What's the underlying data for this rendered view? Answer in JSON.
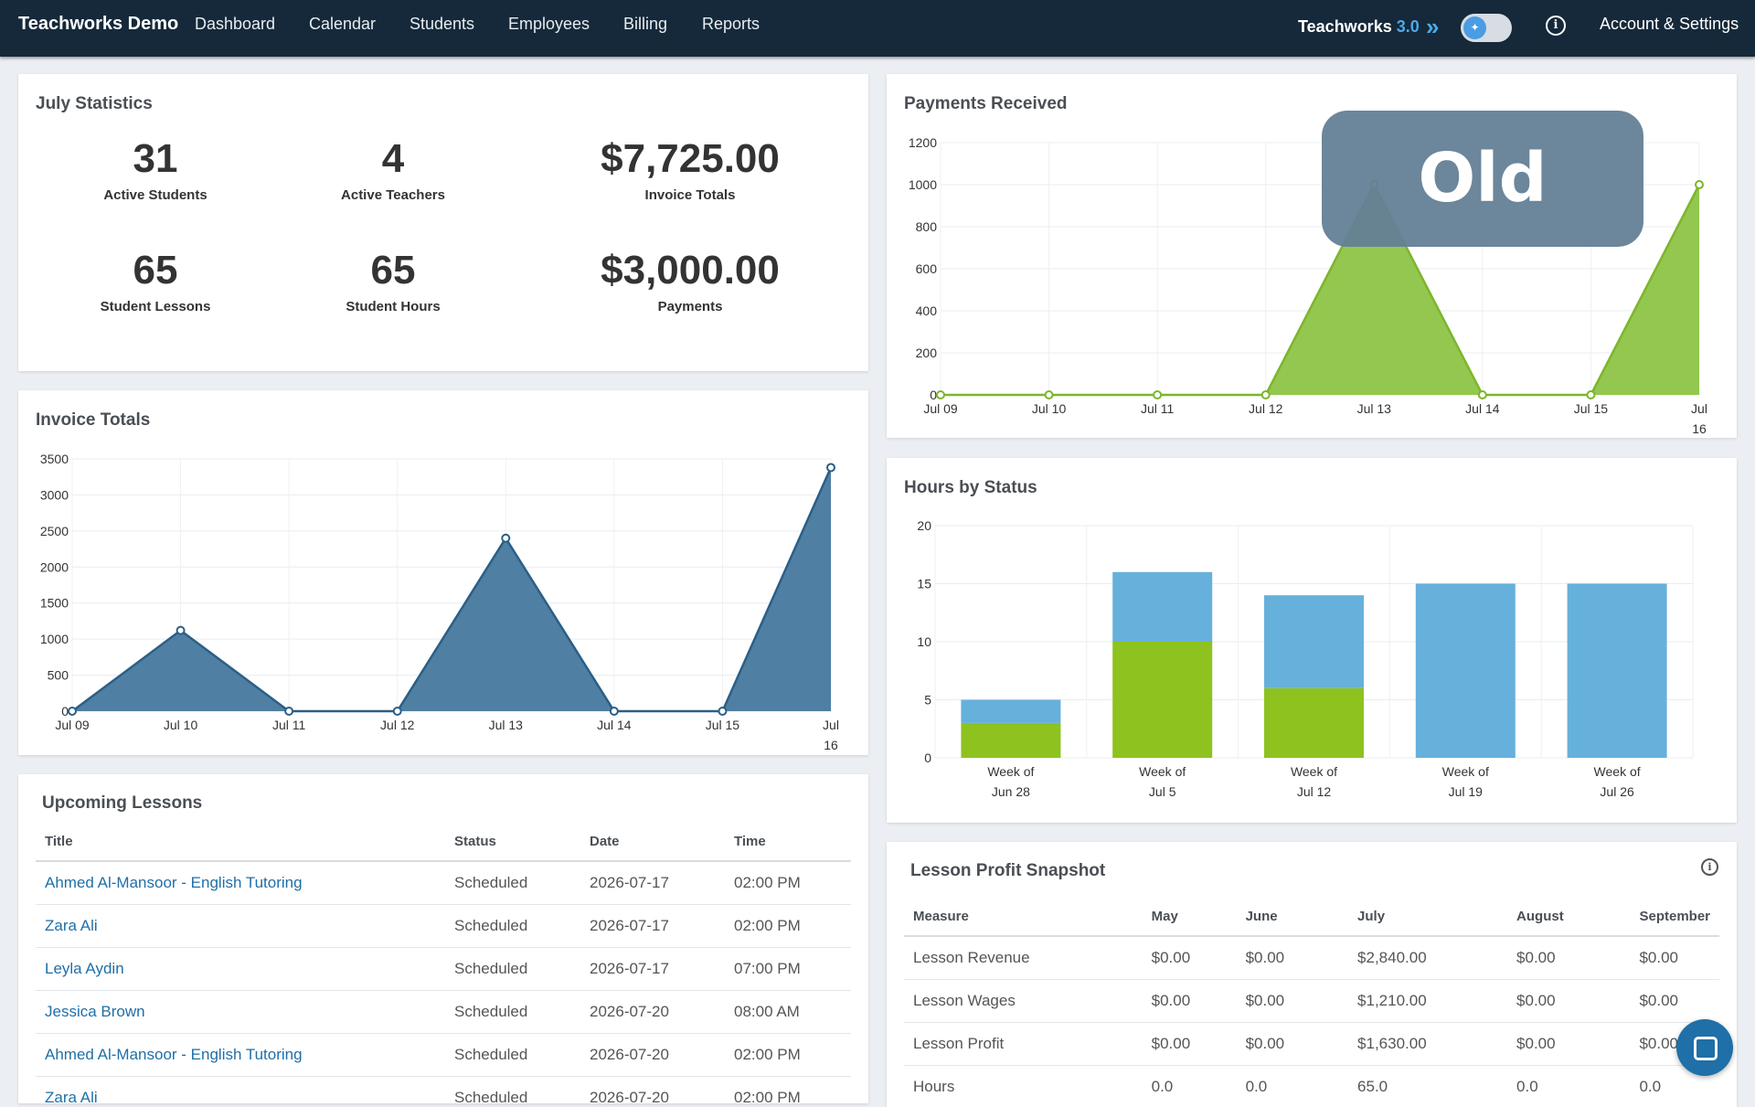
{
  "nav": {
    "brand": "Teachworks Demo",
    "links": [
      "Dashboard",
      "Calendar",
      "Students",
      "Employees",
      "Billing",
      "Reports"
    ],
    "version_label": "Teachworks",
    "version_number": "3.0",
    "chevron_icon": "double-chevron-right-icon",
    "toggle_icon": "toggle-switch-icon",
    "info_icon": "info-icon",
    "account": "Account & Settings"
  },
  "colors": {
    "nav_bg": "#15293a",
    "accent": "#4da9e6",
    "invoice_fill": "#4f7fa3",
    "payments_fill": "#93c74f",
    "bar_blue": "#66b0dc",
    "bar_green": "#8dc21f",
    "link": "#1f6fa8"
  },
  "stats": {
    "title": "July Statistics",
    "items": [
      {
        "value": "31",
        "label": "Active Students"
      },
      {
        "value": "4",
        "label": "Active Teachers"
      },
      {
        "value": "$7,725.00",
        "label": "Invoice Totals"
      },
      {
        "value": "65",
        "label": "Student Lessons"
      },
      {
        "value": "65",
        "label": "Student Hours"
      },
      {
        "value": "$3,000.00",
        "label": "Payments"
      }
    ]
  },
  "invoice_card": {
    "title": "Invoice Totals"
  },
  "payments_card": {
    "title": "Payments Received"
  },
  "hours_card": {
    "title": "Hours by Status"
  },
  "old_badge": "Old",
  "chart_data": [
    {
      "id": "invoice",
      "type": "area",
      "title": "Invoice Totals",
      "categories": [
        "Jul 09",
        "Jul 10",
        "Jul 11",
        "Jul 12",
        "Jul 13",
        "Jul 14",
        "Jul 15",
        "Jul 16"
      ],
      "values": [
        0,
        1120,
        0,
        0,
        2400,
        0,
        0,
        3380
      ],
      "ylim": [
        0,
        3500
      ],
      "yticks": [
        0,
        500,
        1000,
        1500,
        2000,
        2500,
        3000,
        3500
      ],
      "grid": true
    },
    {
      "id": "payments",
      "type": "area",
      "title": "Payments Received",
      "categories": [
        "Jul 09",
        "Jul 10",
        "Jul 11",
        "Jul 12",
        "Jul 13",
        "Jul 14",
        "Jul 15",
        "Jul 16"
      ],
      "values": [
        0,
        0,
        0,
        0,
        1000,
        0,
        0,
        1000
      ],
      "ylim": [
        0,
        1200
      ],
      "yticks": [
        0,
        200,
        400,
        600,
        800,
        1000,
        1200
      ],
      "grid": true
    },
    {
      "id": "hours",
      "type": "bar",
      "stacked": true,
      "title": "Hours by Status",
      "categories": [
        "Week of Jun 28",
        "Week of Jul 5",
        "Week of Jul 12",
        "Week of Jul 19",
        "Week of Jul 26"
      ],
      "series": [
        {
          "values": [
            3,
            10,
            6,
            0,
            0
          ]
        },
        {
          "values": [
            2,
            6,
            8,
            15,
            15
          ]
        }
      ],
      "ylim": [
        0,
        20
      ],
      "yticks": [
        0,
        5,
        10,
        15,
        20
      ],
      "grid": true
    }
  ],
  "lessons": {
    "title": "Upcoming Lessons",
    "columns": [
      "Title",
      "Status",
      "Date",
      "Time"
    ],
    "rows": [
      {
        "title": "Ahmed Al-Mansoor - English Tutoring",
        "status": "Scheduled",
        "date": "2026-07-17",
        "time": "02:00 PM"
      },
      {
        "title": "Zara Ali",
        "status": "Scheduled",
        "date": "2026-07-17",
        "time": "02:00 PM"
      },
      {
        "title": "Leyla Aydin",
        "status": "Scheduled",
        "date": "2026-07-17",
        "time": "07:00 PM"
      },
      {
        "title": "Jessica Brown",
        "status": "Scheduled",
        "date": "2026-07-20",
        "time": "08:00 AM"
      },
      {
        "title": "Ahmed Al-Mansoor - English Tutoring",
        "status": "Scheduled",
        "date": "2026-07-20",
        "time": "02:00 PM"
      },
      {
        "title": "Zara Ali",
        "status": "Scheduled",
        "date": "2026-07-20",
        "time": "02:00 PM"
      }
    ]
  },
  "profit": {
    "title": "Lesson Profit Snapshot",
    "columns": [
      "Measure",
      "May",
      "June",
      "July",
      "August",
      "September"
    ],
    "rows": [
      [
        "Lesson Revenue",
        "$0.00",
        "$0.00",
        "$2,840.00",
        "$0.00",
        "$0.00"
      ],
      [
        "Lesson Wages",
        "$0.00",
        "$0.00",
        "$1,210.00",
        "$0.00",
        "$0.00"
      ],
      [
        "Lesson Profit",
        "$0.00",
        "$0.00",
        "$1,630.00",
        "$0.00",
        "$0.00"
      ],
      [
        "Hours",
        "0.0",
        "0.0",
        "65.0",
        "0.0",
        "0.0"
      ]
    ]
  },
  "chat_icon": "chat-bubble-icon"
}
